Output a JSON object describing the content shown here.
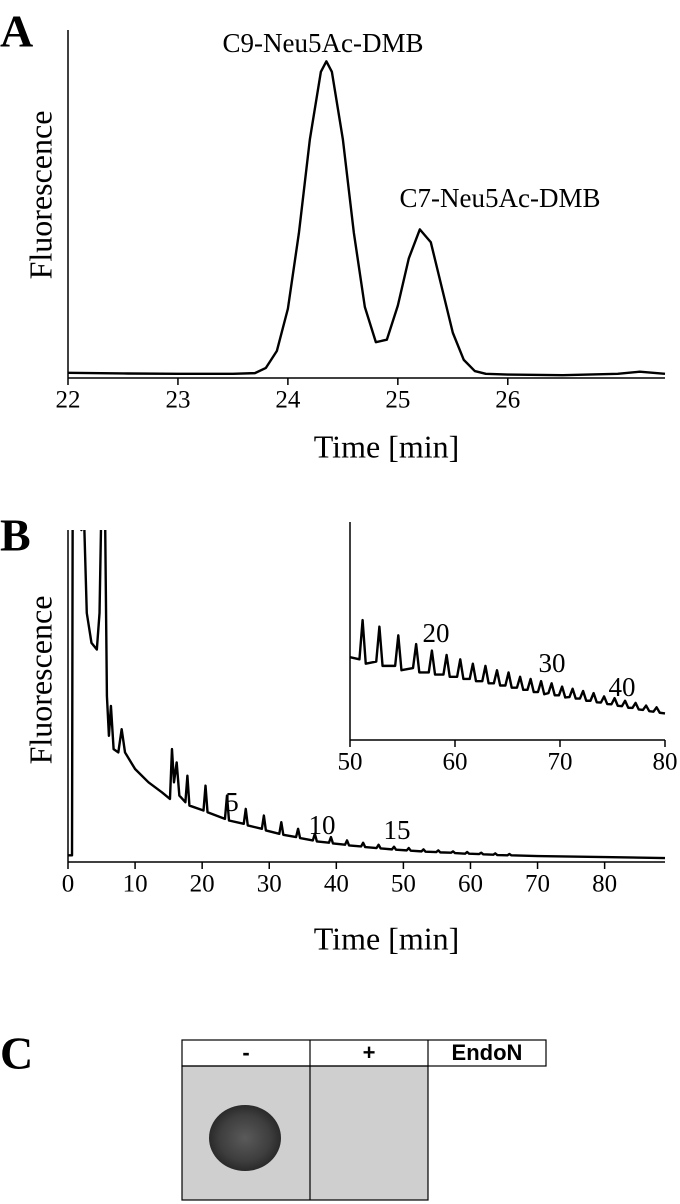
{
  "chart_data": [
    {
      "panel": "A",
      "type": "line",
      "xlabel": "Time [min]",
      "ylabel": "Fluorescence",
      "color": "#000000",
      "x": [
        22,
        22.5,
        23,
        23.5,
        23.7,
        23.8,
        23.9,
        24.0,
        24.1,
        24.2,
        24.3,
        24.35,
        24.4,
        24.5,
        24.6,
        24.7,
        24.8,
        24.9,
        25.0,
        25.1,
        25.2,
        25.3,
        25.4,
        25.5,
        25.6,
        25.7,
        25.8,
        26.0,
        26.5,
        27.0,
        27.2,
        27.43
      ],
      "values": [
        1.5,
        1.3,
        1.2,
        1.2,
        1.4,
        2.9,
        7.8,
        19.9,
        41.6,
        68.6,
        88,
        91,
        88,
        68.6,
        41.7,
        20.4,
        10.3,
        11,
        20.8,
        34.4,
        42.7,
        39,
        26,
        13,
        5.2,
        2,
        1.2,
        1,
        0.8,
        1.2,
        1.8,
        1.2
      ],
      "xlim": [
        22,
        27.43
      ],
      "ylim": [
        0,
        100
      ],
      "xticks": [
        22,
        23,
        24,
        25,
        26
      ],
      "annotations": [
        "C9-Neu5Ac-DMB",
        "C7-Neu5Ac-DMB"
      ]
    },
    {
      "panel": "B",
      "type": "line",
      "xlabel": "Time [min]",
      "ylabel": "Fluorescence",
      "color": "#000000",
      "x": [
        0,
        0.6,
        0.7,
        1.5,
        2.0,
        2.3,
        2.8,
        3.5,
        4.3,
        4.7,
        5.0,
        5.5,
        5.8,
        6.1,
        6.4,
        6.8,
        7.5,
        8.0,
        8.5,
        10,
        12,
        14,
        15.2,
        15.5,
        15.8,
        16.2,
        16.6,
        17.5,
        17.8,
        18.1,
        20.2,
        20.5,
        20.8,
        23.4,
        23.7,
        24.0,
        26.2,
        26.5,
        26.8,
        28.9,
        29.2,
        29.5,
        31.5,
        31.8,
        32.1,
        34.0,
        34.3,
        34.6,
        36.5,
        36.8,
        37.1,
        38.9,
        39.2,
        39.5,
        41.3,
        41.6,
        41.9,
        43.7,
        44.0,
        44.3,
        46.0,
        46.3,
        46.6,
        48.3,
        48.6,
        48.9,
        50.5,
        50.8,
        51.1,
        52.7,
        53.0,
        53.3,
        54.9,
        55.2,
        55.5,
        57.1,
        57.4,
        57.7,
        59.2,
        59.5,
        59.8,
        61.3,
        61.6,
        61.9,
        63.4,
        63.7,
        64.0,
        65.5,
        65.8,
        66.1,
        70,
        80,
        89
      ],
      "values": [
        2,
        2,
        110,
        110,
        100,
        110,
        75,
        66,
        64,
        75,
        110,
        110,
        50,
        38,
        47,
        34,
        33,
        40,
        33,
        28,
        24,
        21,
        19,
        34,
        24,
        30,
        20,
        18,
        26,
        17,
        15.5,
        23,
        15,
        13,
        20,
        12.5,
        11.5,
        16,
        11,
        10,
        14,
        9.5,
        8.5,
        12,
        8.2,
        7.5,
        10,
        7.2,
        6.5,
        8.5,
        6.2,
        5.8,
        7.5,
        5.6,
        5.2,
        6.5,
        5,
        4.7,
        5.8,
        4.5,
        4.2,
        5.2,
        4.1,
        3.8,
        4.6,
        3.7,
        3.5,
        4.2,
        3.4,
        3.2,
        3.8,
        3.1,
        3,
        3.5,
        2.9,
        2.8,
        3.2,
        2.7,
        2.5,
        3,
        2.5,
        2.4,
        2.8,
        2.3,
        2.2,
        2.6,
        2.1,
        2,
        2.4,
        2,
        1.8,
        1.5,
        1.2
      ],
      "xlim": [
        0,
        89
      ],
      "ylim": [
        0,
        100
      ],
      "xticks": [
        0,
        10,
        20,
        30,
        40,
        50,
        60,
        70,
        80
      ],
      "annotations": [
        "5",
        "10",
        "15"
      ]
    },
    {
      "type": "line",
      "color": "#000000",
      "x": [
        50,
        50.9,
        51.2,
        51.5,
        52.5,
        52.8,
        53.1,
        54.3,
        54.6,
        54.9,
        56.0,
        56.3,
        56.6,
        57.5,
        57.8,
        58.1,
        58.9,
        59.2,
        59.5,
        60.2,
        60.5,
        60.8,
        61.4,
        61.7,
        62.0,
        62.6,
        62.9,
        63.2,
        63.7,
        64.0,
        64.3,
        64.8,
        65.1,
        65.4,
        65.9,
        66.2,
        66.5,
        66.9,
        67.2,
        67.5,
        67.9,
        68.2,
        68.5,
        68.9,
        69.2,
        69.5,
        69.9,
        70.2,
        70.5,
        70.9,
        71.2,
        71.5,
        71.9,
        72.2,
        72.5,
        72.9,
        73.2,
        73.5,
        73.9,
        74.2,
        74.5,
        74.9,
        75.2,
        75.5,
        75.9,
        76.2,
        76.5,
        76.9,
        77.2,
        77.5,
        77.9,
        78.2,
        78.5,
        78.9,
        79.2,
        79.5,
        80
      ],
      "values": [
        38,
        37,
        55,
        35,
        36,
        52,
        34,
        34,
        48,
        32,
        33,
        44,
        31,
        31,
        41,
        30,
        30,
        39,
        29,
        29,
        37,
        28,
        28,
        35,
        27,
        27,
        34,
        26,
        26,
        32,
        25,
        25,
        31,
        24,
        24,
        29,
        23,
        23,
        28,
        22,
        22,
        27,
        21,
        21.5,
        26,
        20.5,
        20.5,
        24.5,
        19.5,
        19.7,
        23.5,
        19,
        19,
        22.5,
        18,
        18,
        21.5,
        17.3,
        17.2,
        20,
        16.5,
        16.4,
        19.2,
        15.7,
        15.5,
        18,
        14.8,
        14.7,
        17,
        14,
        13.8,
        15.8,
        13.2,
        13,
        15,
        12.5,
        12.2
      ],
      "xlim": [
        50,
        80
      ],
      "ylim": [
        0,
        100
      ],
      "xticks": [
        50,
        60,
        70,
        80
      ],
      "annotations": [
        "20",
        "30",
        "40"
      ]
    }
  ],
  "dot_blot": {
    "panel": "C",
    "columns": [
      "-",
      "+"
    ],
    "label": "EndoN"
  }
}
